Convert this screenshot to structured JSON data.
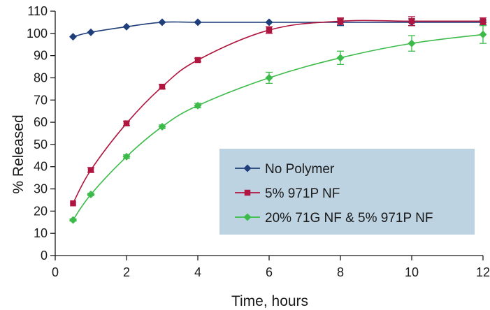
{
  "chart_data": {
    "type": "line",
    "title": "",
    "xlabel": "Time, hours",
    "ylabel": "% Released",
    "xlim": [
      0,
      12
    ],
    "ylim": [
      0,
      110
    ],
    "xticks": [
      0,
      2,
      4,
      6,
      8,
      10,
      12
    ],
    "yticks": [
      0,
      10,
      20,
      30,
      40,
      50,
      60,
      70,
      80,
      90,
      100,
      110
    ],
    "grid": false,
    "legend_position": "lower-right",
    "series": [
      {
        "name": "No Polymer",
        "color": "#1f3f7a",
        "marker": "diamond",
        "x": [
          0.5,
          1,
          2,
          3,
          4,
          6,
          8,
          10,
          12
        ],
        "y": [
          98.5,
          100.5,
          103,
          105,
          105,
          105,
          105,
          105,
          105
        ],
        "error": [
          0,
          0,
          0,
          0,
          0,
          0,
          1.5,
          1.5,
          1
        ]
      },
      {
        "name": "5% 971P NF",
        "color": "#b0153f",
        "marker": "square",
        "x": [
          0.5,
          1,
          2,
          3,
          4,
          6,
          8,
          10,
          12
        ],
        "y": [
          23.5,
          38.5,
          59.5,
          76,
          88,
          101.5,
          105.5,
          105.5,
          105.5
        ],
        "error": [
          0,
          1,
          1,
          1,
          0.8,
          1.5,
          1.5,
          2,
          1.5
        ]
      },
      {
        "name": "20% 71G NF & 5% 971P NF",
        "color": "#3dbb4a",
        "marker": "diamond",
        "x": [
          0.5,
          1,
          2,
          3,
          4,
          6,
          8,
          10,
          12
        ],
        "y": [
          16,
          27.5,
          44.5,
          58,
          67.5,
          80,
          89,
          95.5,
          99.5
        ],
        "error": [
          0.5,
          0.5,
          0.8,
          0.8,
          1,
          2.5,
          3,
          3.5,
          4
        ]
      }
    ]
  }
}
